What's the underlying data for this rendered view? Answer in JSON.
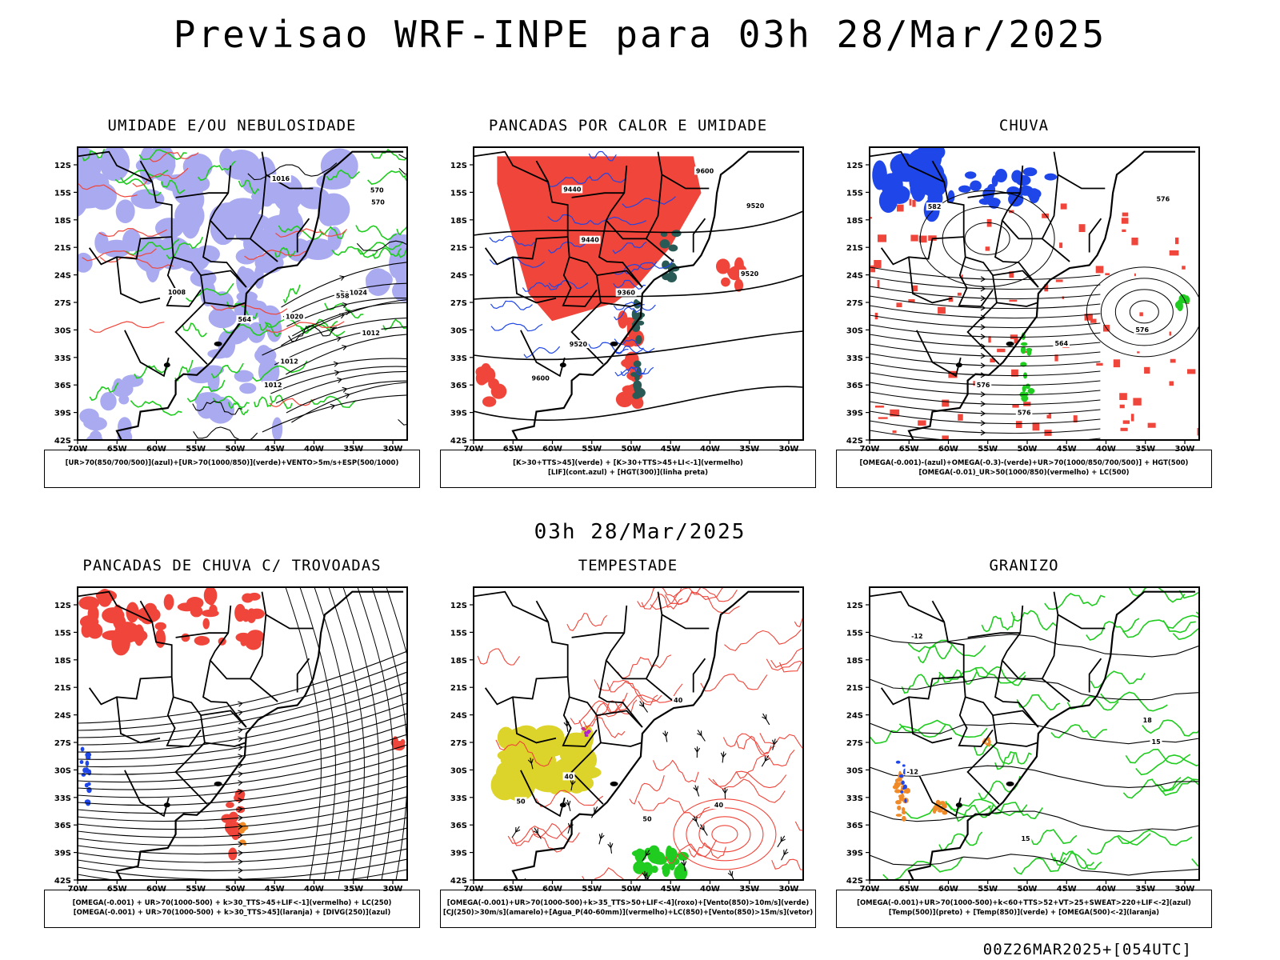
{
  "title": "Previsao WRF-INPE  para 03h 28/Mar/2025",
  "subtitle": "03h 28/Mar/2025",
  "footer": "00Z26MAR2025+[054UTC]",
  "axes": {
    "lat_ticks": [
      "12S",
      "15S",
      "18S",
      "21S",
      "24S",
      "27S",
      "30S",
      "33S",
      "36S",
      "39S",
      "42S"
    ],
    "lon_ticks": [
      "70W",
      "65W",
      "60W",
      "55W",
      "50W",
      "45W",
      "40W",
      "35W",
      "30W"
    ]
  },
  "panels": [
    {
      "id": "umidade",
      "title": "UMIDADE E/OU NEBULOSIDADE",
      "legend": [
        "[UR>70(850/700/500)](azul)+[UR>70(1000/850)](verde)+VENTO>5m/s+ESP(500/1000)"
      ],
      "contour_labels": [
        "1012",
        "1012",
        "1008",
        "1016",
        "1012",
        "1020",
        "1024",
        "570",
        "570",
        "558",
        "564"
      ]
    },
    {
      "id": "pancadas-calor",
      "title": "PANCADAS POR CALOR E UMIDADE",
      "legend": [
        "[K>30+TTS>45](verde) + [K>30+TTS>45+LI<-1](vermelho)",
        "[LIF](cont.azul) + [HGT(300)](linha preta)"
      ],
      "contour_labels": [
        "9600",
        "9600",
        "9520",
        "9520",
        "9440",
        "9440",
        "9360",
        "9520"
      ]
    },
    {
      "id": "chuva",
      "title": "CHUVA",
      "legend": [
        "[OMEGA(-0.001)-(azul)+OMEGA(-0.3)-(verde)+UR>70(1000/850/700/500)] + HGT(500)",
        "[OMEGA(-0.01)_UR>50(1000/850)(vermelho) + LC(500)"
      ],
      "contour_labels": [
        "582",
        "576",
        "576",
        "576",
        "576",
        "564"
      ]
    },
    {
      "id": "trovoadas",
      "title": "PANCADAS DE CHUVA C/ TROVOADAS",
      "legend": [
        "[OMEGA(-0.001) + UR>70(1000-500) + k>30_TTS>45+LIF<-1](vermelho) + LC(250)",
        "[OMEGA(-0.001) + UR>70(1000-500) + k>30_TTS>45](laranja) + [DIVG(250)](azul)"
      ],
      "contour_labels": []
    },
    {
      "id": "tempestade",
      "title": "TEMPESTADE",
      "legend": [
        "[OMEGA(-0.001)+UR>70(1000-500)+k>35_TTS>50+LIF<-4](roxo)+[Vento(850)>10m/s](verde)",
        "[CJ(250)>30m/s](amarelo)+[Agua_P(40-60mm)](vermelho)+LC(850)+[Vento(850)>15m/s](vetor)"
      ],
      "contour_labels": [
        "40",
        "40",
        "40",
        "50",
        "50"
      ]
    },
    {
      "id": "granizo",
      "title": "GRANIZO",
      "legend": [
        "[OMEGA(-0.001)+UR>70(1000-500)+k<60+TTS>52+VT>25+SWEAT>220+LIF<-2](azul)",
        "[Temp(500)](preto) + [Temp(850)](verde) + [OMEGA(500)<-2](laranja)"
      ],
      "contour_labels": [
        "-12",
        "-12",
        "15",
        "15",
        "18"
      ]
    }
  ],
  "colors": {
    "red": "#f0453a",
    "green": "#1fcc1f",
    "blue": "#1e46e8",
    "lavender": "#a9aaf0",
    "orange": "#f08a28",
    "yellow": "#dcd42a",
    "darkgreen": "#2a5a55",
    "purple": "#b020d0",
    "black": "#000000"
  }
}
